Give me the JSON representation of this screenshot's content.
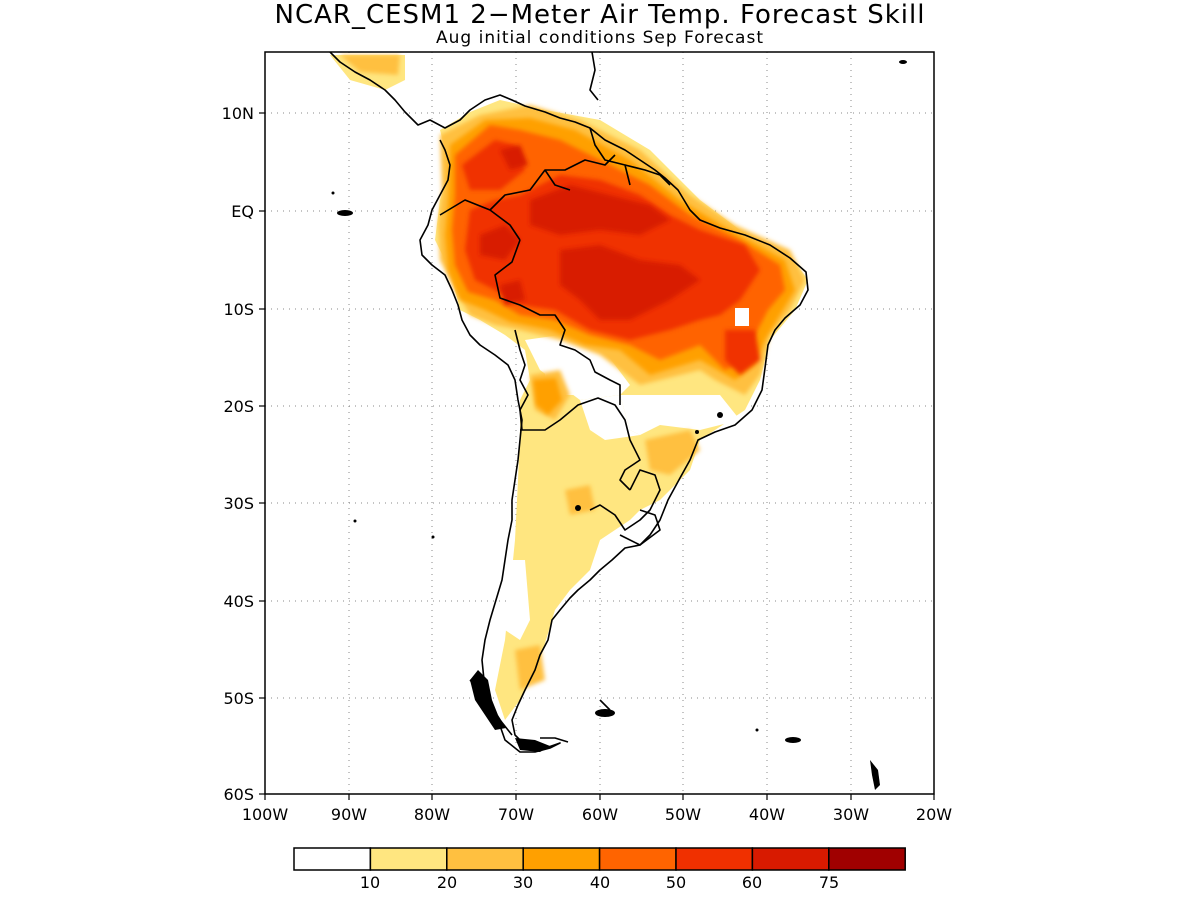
{
  "title": "NCAR_CESM1 2−Meter Air Temp. Forecast Skill",
  "subtitle": "Aug initial conditions  Sep Forecast",
  "axes": {
    "lat_labels": [
      "10N",
      "EQ",
      "10S",
      "20S",
      "30S",
      "40S",
      "50S",
      "60S"
    ],
    "lon_labels": [
      "100W",
      "90W",
      "80W",
      "70W",
      "60W",
      "50W",
      "40W",
      "30W",
      "20W"
    ],
    "lon_range": [
      -100,
      -20
    ],
    "lat_range": [
      -60,
      15.5
    ],
    "grid": "dotted"
  },
  "colorbar": {
    "labels": [
      "10",
      "20",
      "30",
      "40",
      "50",
      "60",
      "75"
    ],
    "colors": [
      "#ffffff",
      "#ffe680",
      "#ffc040",
      "#ffa000",
      "#ff6400",
      "#f03000",
      "#d81a00",
      "#a00000"
    ]
  }
}
